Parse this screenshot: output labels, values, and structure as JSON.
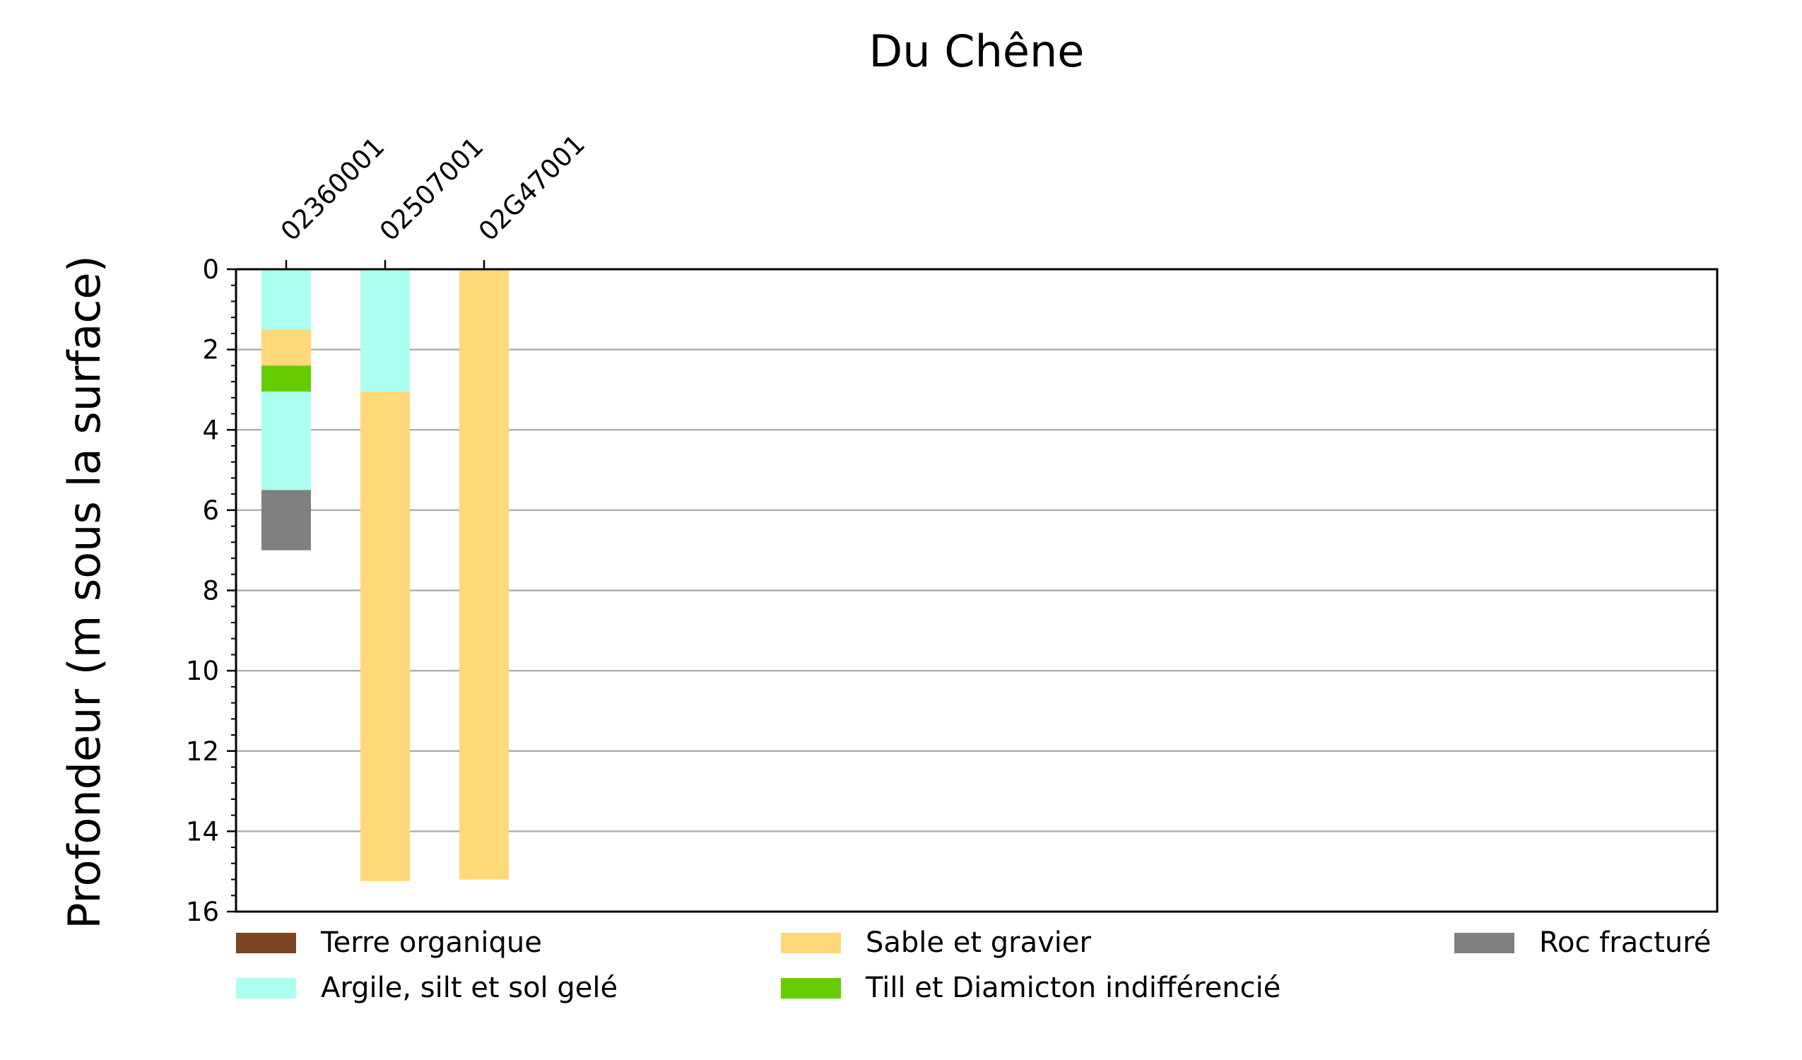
{
  "chart_data": {
    "type": "bar",
    "title": "Du Chêne",
    "ylabel": "Profondeur (m sous la surface)",
    "xlabel": "",
    "ylim": [
      0,
      16
    ],
    "y_inverted": true,
    "y_ticks": [
      0,
      2,
      4,
      6,
      8,
      10,
      12,
      14,
      16
    ],
    "grid": "horizontal",
    "x_tick_rotation": 45,
    "wells": [
      {
        "name": "02360001",
        "layers": [
          {
            "top": 0,
            "bottom": 1.5,
            "material": "Argile, silt et sol gelé"
          },
          {
            "top": 1.5,
            "bottom": 2.4,
            "material": "Sable et gravier"
          },
          {
            "top": 2.4,
            "bottom": 3.05,
            "material": "Till et Diamicton indifférencié"
          },
          {
            "top": 3.05,
            "bottom": 5.5,
            "material": "Argile, silt et sol gelé"
          },
          {
            "top": 5.5,
            "bottom": 7.0,
            "material": "Roc fracturé"
          }
        ]
      },
      {
        "name": "02507001",
        "layers": [
          {
            "top": 0,
            "bottom": 3.05,
            "material": "Argile, silt et sol gelé"
          },
          {
            "top": 3.05,
            "bottom": 15.24,
            "material": "Sable et gravier"
          }
        ]
      },
      {
        "name": "02G47001",
        "layers": [
          {
            "top": 0,
            "bottom": 15.2,
            "material": "Sable et gravier"
          }
        ]
      }
    ],
    "legend": [
      {
        "label": "Terre organique",
        "color": "#7b4424"
      },
      {
        "label": "Argile, silt et sol gelé",
        "color": "#aafff0"
      },
      {
        "label": "Sable et gravier",
        "color": "#fed879"
      },
      {
        "label": "Till et Diamicton indifférencié",
        "color": "#66cc00"
      },
      {
        "label": "Roc fracturé",
        "color": "#808080"
      }
    ]
  }
}
